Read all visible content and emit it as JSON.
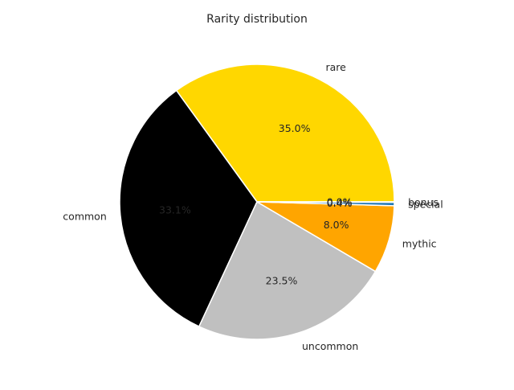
{
  "chart_data": {
    "type": "pie",
    "title": "Rarity distribution",
    "slices": [
      {
        "label": "rare",
        "value": 35.0,
        "pct_label": "35.0%",
        "color": "#FFD700"
      },
      {
        "label": "common",
        "value": 33.1,
        "pct_label": "33.1%",
        "color": "#000000"
      },
      {
        "label": "uncommon",
        "value": 23.5,
        "pct_label": "23.5%",
        "color": "#C0C0C0"
      },
      {
        "label": "mythic",
        "value": 8.0,
        "pct_label": "8.0%",
        "color": "#FFA500"
      },
      {
        "label": "special",
        "value": 0.4,
        "pct_label": "0.4%",
        "color": "#1F77B4"
      },
      {
        "label": "bonus",
        "value": 0.05,
        "pct_label": "0.0%",
        "color": "#FFFFFF"
      }
    ],
    "start_angle_deg": 0,
    "direction": "counterclockwise",
    "edge_color": "#FFFFFF",
    "legend": false
  }
}
